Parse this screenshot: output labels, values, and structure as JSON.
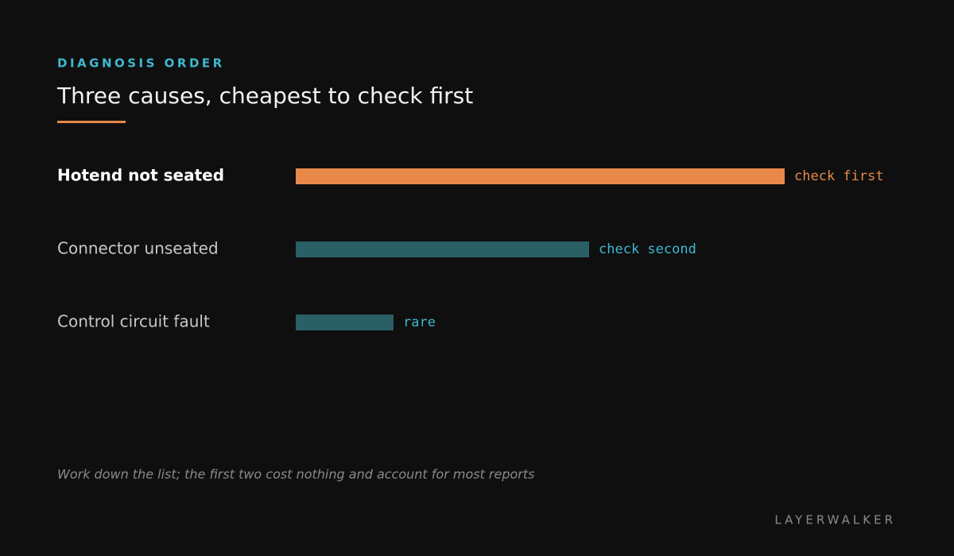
{
  "chart_data": {
    "type": "bar",
    "kicker": "DIAGNOSIS ORDER",
    "title": "Three causes, cheapest to check first",
    "categories": [
      "Hotend not seated",
      "Connector unseated",
      "Control circuit fault"
    ],
    "values": [
      5,
      3,
      1
    ],
    "annotations": [
      "check first",
      "check second",
      "rare"
    ],
    "colors": [
      "#e8884a",
      "#2a5f66",
      "#2a5f66"
    ],
    "annotation_colors": [
      "#e8884a",
      "#3fb8d0",
      "#3fb8d0"
    ],
    "highlight": [
      true,
      false,
      false
    ],
    "footnote": "Work down the list; the first two cost nothing and account for most reports",
    "brand": "LAYERWALKER"
  }
}
